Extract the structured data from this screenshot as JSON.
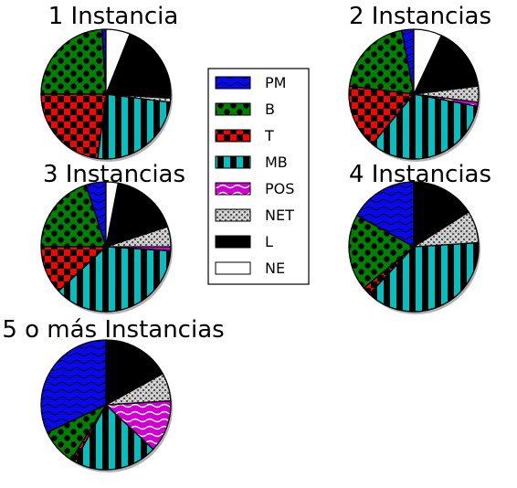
{
  "categories": [
    "PM",
    "B",
    "T",
    "MB",
    "POS",
    "NET",
    "L",
    "NE"
  ],
  "styles": {
    "PM": {
      "color": "#0a0ae6",
      "pattern": "waves"
    },
    "B": {
      "color": "#008000",
      "pattern": "dots"
    },
    "T": {
      "color": "#ff0000",
      "pattern": "checker"
    },
    "MB": {
      "color": "#00c0c0",
      "pattern": "vstripes"
    },
    "POS": {
      "color": "#d000d0",
      "pattern": "waves-white"
    },
    "NET": {
      "color": "#a0a0a0",
      "pattern": "speckle"
    },
    "L": {
      "color": "#000000",
      "pattern": "solid"
    },
    "NE": {
      "color": "#ffffff",
      "pattern": "solid"
    }
  },
  "chart_data": [
    {
      "type": "pie",
      "title": "1 Instancia",
      "values": {
        "PM": 1,
        "B": 24,
        "T": 23,
        "MB": 25,
        "POS": 0,
        "NET": 1,
        "L": 20,
        "NE": 6
      }
    },
    {
      "type": "pie",
      "title": "2 Instancias",
      "values": {
        "PM": 3,
        "B": 20,
        "T": 16,
        "MB": 33,
        "POS": 1,
        "NET": 4,
        "L": 16,
        "NE": 7
      }
    },
    {
      "type": "pie",
      "title": "3 Instancias",
      "values": {
        "PM": 5,
        "B": 20,
        "T": 12,
        "MB": 37,
        "POS": 1,
        "NET": 5,
        "L": 17,
        "NE": 3
      }
    },
    {
      "type": "pie",
      "title": "4 Instancias",
      "values": {
        "PM": 17,
        "B": 19,
        "T": 2,
        "MB": 38,
        "POS": 0,
        "NET": 8,
        "L": 16,
        "NE": 0
      }
    },
    {
      "type": "pie",
      "title": "5 o más Instancias",
      "values": {
        "PM": 32,
        "B": 9,
        "T": 1,
        "MB": 21,
        "POS": 13,
        "NET": 7,
        "L": 17,
        "NE": 0
      }
    }
  ],
  "legend": {
    "entries": [
      "PM",
      "B",
      "T",
      "MB",
      "POS",
      "NET",
      "L",
      "NE"
    ]
  }
}
